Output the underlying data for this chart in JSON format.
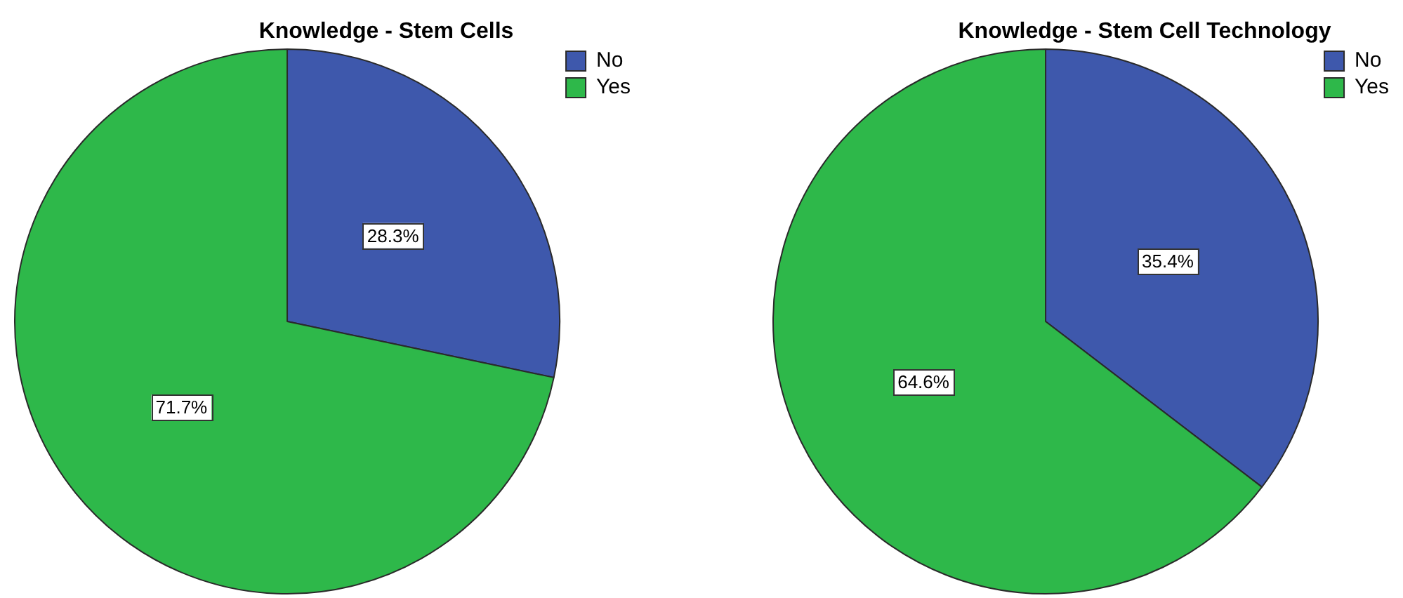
{
  "chart_data": [
    {
      "type": "pie",
      "title": "Knowledge - Stem Cells",
      "categories": [
        "No",
        "Yes"
      ],
      "values": [
        28.3,
        71.7
      ],
      "colors": [
        "#3e58ac",
        "#2eb84a"
      ],
      "value_labels": [
        "28.3%",
        "71.7%"
      ],
      "legend": "top right"
    },
    {
      "type": "pie",
      "title": "Knowledge - Stem Cell Technology",
      "categories": [
        "No",
        "Yes"
      ],
      "values": [
        35.4,
        64.6
      ],
      "colors": [
        "#3e58ac",
        "#2eb84a"
      ],
      "value_labels": [
        "35.4%",
        "64.6%"
      ],
      "legend": "top right"
    }
  ]
}
